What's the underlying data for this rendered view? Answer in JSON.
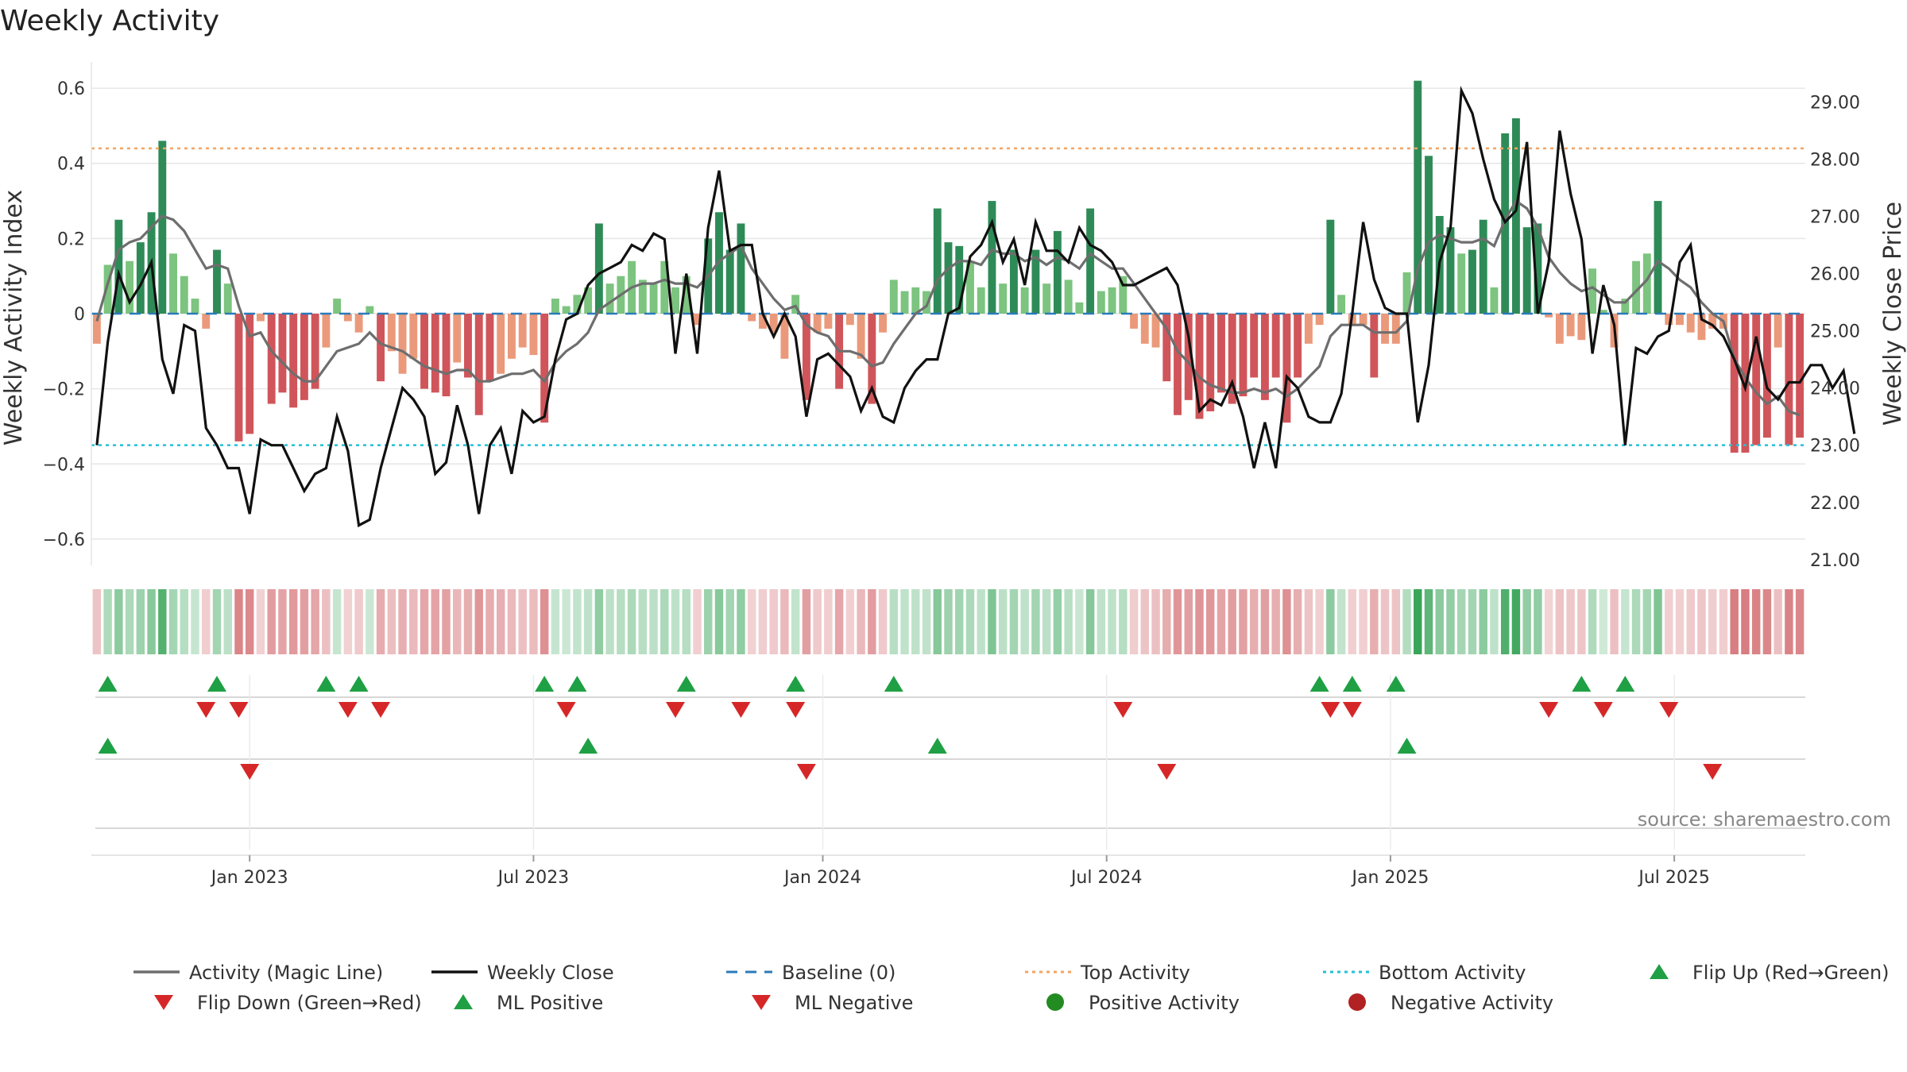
{
  "chart_data": {
    "type": "bar",
    "title": "Weekly Activity",
    "ylabel": "Weekly Activity Index",
    "y2label": "Weekly Close Price",
    "source": "source: sharemaestro.com",
    "ylim": [
      -0.67,
      0.67
    ],
    "y2lim": [
      20.9,
      29.7
    ],
    "yticks": [
      -0.6,
      -0.4,
      -0.2,
      0,
      0.2,
      0.4,
      0.6
    ],
    "ytick_labels": [
      "−0.6",
      "−0.4",
      "−0.2",
      "0",
      "0.2",
      "0.4",
      "0.6"
    ],
    "y2ticks": [
      21,
      22,
      23,
      24,
      25,
      26,
      27,
      28,
      29
    ],
    "y2tick_labels": [
      "21.00",
      "22.00",
      "23.00",
      "24.00",
      "25.00",
      "26.00",
      "27.00",
      "28.00",
      "29.00"
    ],
    "xlim": [
      0,
      157
    ],
    "xticks": [
      14.5,
      40.5,
      67,
      93,
      119,
      145
    ],
    "xtick_labels": [
      "Jan 2023",
      "Jul 2023",
      "Jan 2024",
      "Jul 2024",
      "Jan 2025",
      "Jul 2025"
    ],
    "top_activity": 0.44,
    "bottom_activity": -0.35,
    "activity": [
      -0.08,
      0.13,
      0.25,
      0.14,
      0.19,
      0.27,
      0.46,
      0.16,
      0.1,
      0.04,
      -0.04,
      0.17,
      0.08,
      -0.34,
      -0.32,
      -0.02,
      -0.24,
      -0.21,
      -0.25,
      -0.23,
      -0.2,
      -0.09,
      0.04,
      -0.02,
      -0.05,
      0.02,
      -0.18,
      -0.1,
      -0.16,
      -0.12,
      -0.2,
      -0.21,
      -0.22,
      -0.13,
      -0.17,
      -0.27,
      -0.18,
      -0.16,
      -0.12,
      -0.09,
      -0.11,
      -0.29,
      0.04,
      0.02,
      0.05,
      0.07,
      0.24,
      0.08,
      0.1,
      0.14,
      0.09,
      0.08,
      0.14,
      0.07,
      0.1,
      -0.03,
      0.2,
      0.27,
      0.17,
      0.24,
      -0.02,
      -0.04,
      -0.05,
      -0.12,
      0.05,
      -0.23,
      -0.05,
      -0.04,
      -0.2,
      -0.03,
      -0.12,
      -0.24,
      -0.05,
      0.09,
      0.06,
      0.07,
      0.06,
      0.28,
      0.19,
      0.18,
      0.14,
      0.07,
      0.3,
      0.08,
      0.17,
      0.07,
      0.17,
      0.08,
      0.22,
      0.09,
      0.03,
      0.28,
      0.06,
      0.07,
      0.1,
      -0.04,
      -0.08,
      -0.09,
      -0.18,
      -0.27,
      -0.23,
      -0.28,
      -0.26,
      -0.21,
      -0.24,
      -0.22,
      -0.17,
      -0.23,
      -0.17,
      -0.29,
      -0.17,
      -0.08,
      -0.03,
      0.25,
      0.05,
      -0.03,
      -0.03,
      -0.17,
      -0.08,
      -0.08,
      0.11,
      0.62,
      0.42,
      0.26,
      0.23,
      0.16,
      0.17,
      0.25,
      0.07,
      0.48,
      0.52,
      0.23,
      0.24,
      -0.01,
      -0.08,
      -0.06,
      -0.07,
      0.12,
      0.01,
      -0.09,
      0.04,
      0.14,
      0.16,
      0.3,
      -0.03,
      -0.03,
      -0.05,
      -0.07,
      -0.04,
      -0.04,
      -0.37,
      -0.37,
      -0.35,
      -0.33,
      -0.09,
      -0.35,
      -0.33
    ],
    "magic_line": [
      -0.02,
      0.08,
      0.17,
      0.19,
      0.2,
      0.23,
      0.26,
      0.25,
      0.22,
      0.17,
      0.12,
      0.13,
      0.12,
      0.02,
      -0.06,
      -0.05,
      -0.1,
      -0.13,
      -0.16,
      -0.18,
      -0.18,
      -0.14,
      -0.1,
      -0.09,
      -0.08,
      -0.05,
      -0.08,
      -0.09,
      -0.1,
      -0.12,
      -0.14,
      -0.15,
      -0.16,
      -0.15,
      -0.15,
      -0.18,
      -0.18,
      -0.17,
      -0.16,
      -0.16,
      -0.15,
      -0.18,
      -0.13,
      -0.1,
      -0.08,
      -0.05,
      0.01,
      0.03,
      0.05,
      0.07,
      0.08,
      0.08,
      0.09,
      0.08,
      0.08,
      0.07,
      0.1,
      0.14,
      0.16,
      0.18,
      0.12,
      0.08,
      0.04,
      0.01,
      0.02,
      -0.03,
      -0.05,
      -0.06,
      -0.1,
      -0.1,
      -0.11,
      -0.14,
      -0.13,
      -0.08,
      -0.04,
      0.0,
      0.02,
      0.09,
      0.12,
      0.14,
      0.14,
      0.13,
      0.17,
      0.16,
      0.16,
      0.14,
      0.15,
      0.13,
      0.15,
      0.14,
      0.12,
      0.16,
      0.14,
      0.12,
      0.12,
      0.08,
      0.04,
      0.0,
      -0.04,
      -0.1,
      -0.13,
      -0.17,
      -0.19,
      -0.2,
      -0.21,
      -0.21,
      -0.2,
      -0.21,
      -0.2,
      -0.22,
      -0.2,
      -0.17,
      -0.14,
      -0.06,
      -0.03,
      -0.03,
      -0.03,
      -0.05,
      -0.05,
      -0.05,
      -0.02,
      0.12,
      0.19,
      0.21,
      0.2,
      0.19,
      0.19,
      0.2,
      0.18,
      0.25,
      0.3,
      0.28,
      0.23,
      0.15,
      0.11,
      0.08,
      0.06,
      0.07,
      0.05,
      0.03,
      0.03,
      0.06,
      0.09,
      0.14,
      0.12,
      0.09,
      0.07,
      0.03,
      0.0,
      -0.02,
      -0.12,
      -0.17,
      -0.21,
      -0.24,
      -0.22,
      -0.26,
      -0.27
    ],
    "weekly_close": [
      23.0,
      24.8,
      26.0,
      25.5,
      25.8,
      26.2,
      24.5,
      23.9,
      25.1,
      25.0,
      23.3,
      23.0,
      22.6,
      22.6,
      21.8,
      23.1,
      23.0,
      23.0,
      22.6,
      22.2,
      22.5,
      22.6,
      23.5,
      22.9,
      21.6,
      21.7,
      22.6,
      23.3,
      24.0,
      23.8,
      23.5,
      22.5,
      22.7,
      23.7,
      23.0,
      21.8,
      23.0,
      23.3,
      22.5,
      23.6,
      23.4,
      23.5,
      24.5,
      25.2,
      25.3,
      25.8,
      26.0,
      26.1,
      26.2,
      26.5,
      26.4,
      26.7,
      26.6,
      24.6,
      26.0,
      24.6,
      26.8,
      27.8,
      26.4,
      26.5,
      26.5,
      25.3,
      24.9,
      25.3,
      24.9,
      23.5,
      24.5,
      24.6,
      24.4,
      24.2,
      23.6,
      24.0,
      23.5,
      23.4,
      24.0,
      24.3,
      24.5,
      24.5,
      25.3,
      25.4,
      26.3,
      26.5,
      26.9,
      26.2,
      26.6,
      25.8,
      26.9,
      26.4,
      26.4,
      26.2,
      26.8,
      26.5,
      26.4,
      26.2,
      25.8,
      25.8,
      25.9,
      26.0,
      26.1,
      25.8,
      24.9,
      23.6,
      23.8,
      23.7,
      24.1,
      23.5,
      22.6,
      23.4,
      22.6,
      24.2,
      24.0,
      23.5,
      23.4,
      23.4,
      23.9,
      25.3,
      26.9,
      25.9,
      25.4,
      25.3,
      25.3,
      23.4,
      24.4,
      26.2,
      26.8,
      29.2,
      28.8,
      28.0,
      27.3,
      26.9,
      27.1,
      28.3,
      25.3,
      26.2,
      28.5,
      27.4,
      26.6,
      24.6,
      25.8,
      25.1,
      23.0,
      24.7,
      24.6,
      24.9,
      25.0,
      26.2,
      26.5,
      25.2,
      25.1,
      24.9,
      24.5,
      24.0,
      24.9,
      24.0,
      23.8,
      24.1,
      24.1,
      24.4,
      24.4,
      24.0,
      24.3,
      23.2
    ],
    "flip_up_weeks": [
      1,
      11,
      21,
      24,
      41,
      44,
      54,
      64,
      73,
      112,
      115,
      119,
      136,
      140
    ],
    "flip_down_weeks": [
      10,
      13,
      23,
      26,
      43,
      53,
      59,
      64,
      94,
      113,
      115,
      133,
      138,
      144
    ],
    "ml_positive_weeks": [
      1,
      45,
      77,
      120
    ],
    "ml_negative_weeks": [
      14,
      65,
      98,
      148
    ],
    "legend": [
      {
        "label": "Activity (Magic Line)",
        "style": "line",
        "color": "#6e6e6e"
      },
      {
        "label": "Weekly Close",
        "style": "line",
        "color": "#111111"
      },
      {
        "label": "Baseline (0)",
        "style": "dash",
        "color": "#2a7ab9"
      },
      {
        "label": "Top Activity",
        "style": "dot",
        "color": "#f4a460"
      },
      {
        "label": "Bottom Activity",
        "style": "dot",
        "color": "#22c1d6"
      },
      {
        "label": "Flip Up (Red→Green)",
        "style": "tri-up",
        "color": "#1fa044"
      },
      {
        "label": "Flip Down (Green→Red)",
        "style": "tri-down",
        "color": "#d62728"
      },
      {
        "label": "ML Positive",
        "style": "tri-up",
        "color": "#1fa044"
      },
      {
        "label": "ML Negative",
        "style": "tri-down",
        "color": "#d62728"
      },
      {
        "label": "Positive Activity",
        "style": "circle",
        "color": "#228b22"
      },
      {
        "label": "Negative Activity",
        "style": "circle",
        "color": "#b22222"
      }
    ],
    "colors": {
      "pos_strong": "#2e8b57",
      "pos_weak": "#7cc47f",
      "neg_strong": "#d0555a",
      "neg_weak": "#ea9a7b",
      "grid": "#e6e6e6",
      "axis": "#999999"
    }
  }
}
